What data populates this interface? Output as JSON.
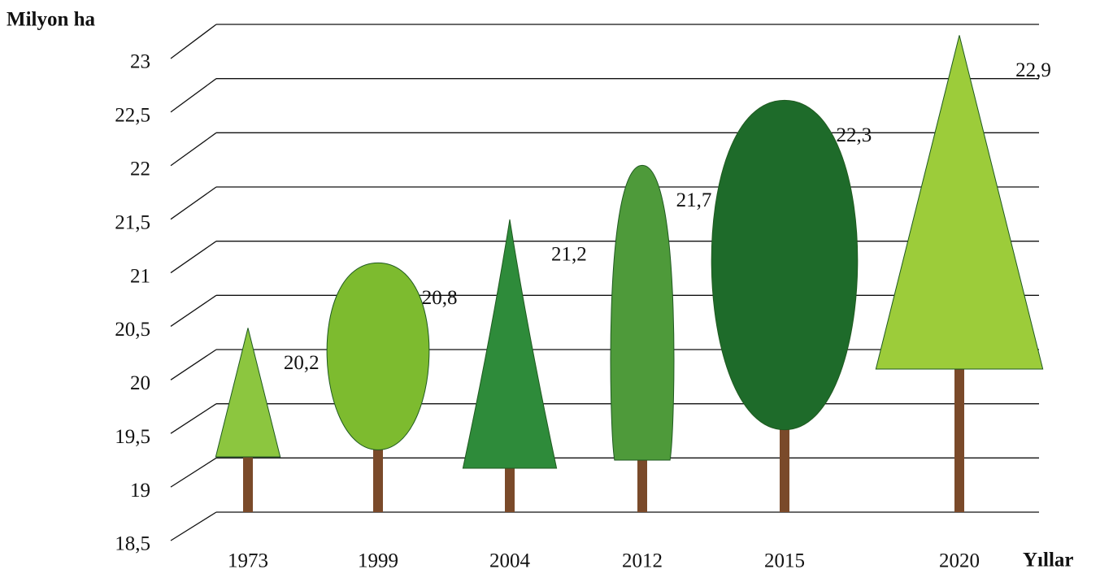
{
  "chart_data": {
    "type": "bar",
    "y_label": "Milyon ha",
    "x_label": "Yıllar",
    "categories": [
      "1973",
      "1999",
      "2004",
      "2012",
      "2015",
      "2020"
    ],
    "values": [
      20.2,
      20.8,
      21.2,
      21.7,
      22.3,
      22.9
    ],
    "value_labels": [
      "20,2",
      "20,8",
      "21,2",
      "21,7",
      "22,3",
      "22,9"
    ],
    "colors": [
      "#8cc63f",
      "#7dbb2f",
      "#2e8b3a",
      "#4e9a3a",
      "#1e6b2a",
      "#9ccc3a"
    ],
    "ylim": [
      18.5,
      23
    ],
    "yticks": [
      {
        "value": 18.5,
        "label": "18,5"
      },
      19,
      {
        "value": 19.5,
        "label": "19,5"
      },
      20,
      {
        "value": 20.5,
        "label": "20,5"
      },
      21,
      {
        "value": 21.5,
        "label": "21,5"
      },
      22,
      {
        "value": 22.5,
        "label": "22,5"
      },
      23
    ],
    "grid": true
  }
}
